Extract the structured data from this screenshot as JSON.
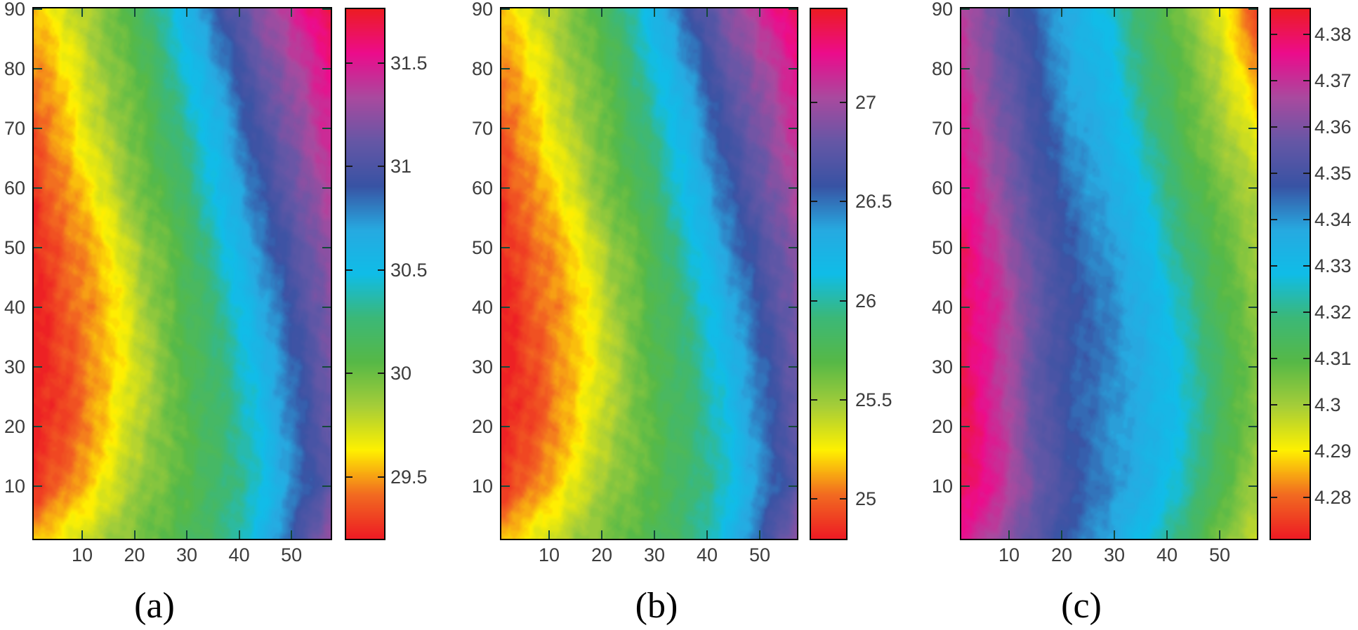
{
  "figure": {
    "background": "#ffffff",
    "axis_color": "#000000",
    "tick_label_color": "#3c3c3c",
    "caption_color": "#000000",
    "tick_mark_color": "#15483a",
    "colorbar_tick_color": "#1a1a1a",
    "colormap": "hsv-rainbow",
    "colormap_stops": [
      "#ed1c24",
      "#f26c21",
      "#fff101",
      "#a6ce39",
      "#57b947",
      "#3cb878",
      "#10bde8",
      "#27aae1",
      "#3953a4",
      "#6657a6",
      "#aa4a9f",
      "#ec0c8c",
      "#ed1c24"
    ]
  },
  "chart_data": [
    {
      "type": "heatmap",
      "caption": "(a)",
      "x": [
        1,
        8,
        15,
        22,
        29,
        36,
        43,
        50,
        57
      ],
      "y": [
        90,
        80,
        70,
        60,
        50,
        40,
        30,
        20,
        10,
        1
      ],
      "values": [
        [
          29.55,
          29.75,
          29.95,
          30.2,
          30.55,
          30.9,
          31.2,
          31.45,
          31.7
        ],
        [
          29.45,
          29.65,
          29.9,
          30.1,
          30.4,
          30.75,
          31.05,
          31.3,
          31.55
        ],
        [
          29.35,
          29.6,
          29.85,
          30.05,
          30.3,
          30.6,
          30.95,
          31.2,
          31.45
        ],
        [
          29.28,
          29.5,
          29.75,
          30.0,
          30.2,
          30.5,
          30.85,
          31.1,
          31.35
        ],
        [
          29.22,
          29.42,
          29.6,
          29.9,
          30.1,
          30.4,
          30.75,
          31.0,
          31.28
        ],
        [
          29.2,
          29.38,
          29.55,
          29.85,
          30.08,
          30.3,
          30.6,
          30.95,
          31.2
        ],
        [
          29.2,
          29.35,
          29.55,
          29.8,
          30.05,
          30.25,
          30.5,
          30.85,
          31.15
        ],
        [
          29.2,
          29.35,
          29.6,
          29.85,
          30.05,
          30.2,
          30.45,
          30.8,
          31.1
        ],
        [
          29.25,
          29.45,
          29.7,
          29.9,
          30.05,
          30.2,
          30.4,
          30.75,
          31.05
        ],
        [
          29.55,
          29.7,
          29.85,
          30.0,
          30.1,
          30.25,
          30.5,
          30.9,
          31.3
        ]
      ],
      "x_axis_range": [
        0.74,
        57.5
      ],
      "y_axis_range": [
        1.2,
        90.12
      ],
      "x_tick_values": [
        10,
        20,
        30,
        40,
        50
      ],
      "x_tick_labels": [
        "10",
        "20",
        "30",
        "40",
        "50"
      ],
      "y_tick_values": [
        90,
        80,
        70,
        60,
        50,
        40,
        30,
        20,
        10
      ],
      "y_tick_labels": [
        "90",
        "80",
        "70",
        "60",
        "50",
        "40",
        "30",
        "20",
        "10"
      ],
      "colorbar": {
        "min": 29.2,
        "max": 31.76,
        "tick_values": [
          31.5,
          31,
          30.5,
          30,
          29.5
        ],
        "tick_labels": [
          "31.5",
          "31",
          "30.5",
          "30",
          "29.5"
        ]
      }
    },
    {
      "type": "heatmap",
      "caption": "(b)",
      "x": [
        1,
        8,
        15,
        22,
        29,
        36,
        43,
        50,
        57
      ],
      "y": [
        90,
        80,
        70,
        60,
        50,
        40,
        30,
        20,
        10,
        1
      ],
      "values": [
        [
          25.16,
          25.37,
          25.58,
          25.84,
          26.2,
          26.56,
          26.87,
          27.13,
          27.39
        ],
        [
          25.06,
          25.27,
          25.52,
          25.73,
          26.04,
          26.4,
          26.72,
          26.97,
          27.23
        ],
        [
          24.96,
          25.21,
          25.47,
          25.68,
          25.94,
          26.25,
          26.61,
          26.87,
          27.13
        ],
        [
          24.88,
          25.11,
          25.37,
          25.63,
          25.84,
          26.15,
          26.51,
          26.77,
          27.03
        ],
        [
          24.82,
          25.03,
          25.21,
          25.52,
          25.73,
          26.04,
          26.4,
          26.66,
          26.95
        ],
        [
          24.8,
          24.99,
          25.16,
          25.47,
          25.71,
          25.94,
          26.25,
          26.61,
          26.87
        ],
        [
          24.8,
          24.96,
          25.16,
          25.42,
          25.68,
          25.89,
          26.15,
          26.51,
          26.82
        ],
        [
          24.8,
          24.96,
          25.21,
          25.47,
          25.68,
          25.84,
          26.09,
          26.46,
          26.77
        ],
        [
          24.85,
          25.06,
          25.32,
          25.52,
          25.68,
          25.84,
          26.04,
          26.4,
          26.72
        ],
        [
          25.16,
          25.32,
          25.47,
          25.63,
          25.73,
          25.89,
          26.15,
          26.56,
          26.97
        ]
      ],
      "x_axis_range": [
        0.93,
        57.07
      ],
      "y_axis_range": [
        1.2,
        90.12
      ],
      "x_tick_values": [
        10,
        20,
        30,
        40,
        50
      ],
      "x_tick_labels": [
        "10",
        "20",
        "30",
        "40",
        "50"
      ],
      "y_tick_values": [
        90,
        80,
        70,
        60,
        50,
        40,
        30,
        20,
        10
      ],
      "y_tick_labels": [
        "90",
        "80",
        "70",
        "60",
        "50",
        "40",
        "30",
        "20",
        "10"
      ],
      "colorbar": {
        "min": 24.8,
        "max": 27.47,
        "tick_values": [
          27,
          26.5,
          26,
          25.5,
          25
        ],
        "tick_labels": [
          "27",
          "26.5",
          "26",
          "25.5",
          "25"
        ]
      }
    },
    {
      "type": "heatmap",
      "caption": "(c)",
      "x": [
        1,
        8,
        15,
        22,
        29,
        36,
        43,
        50,
        57
      ],
      "y": [
        90,
        80,
        70,
        60,
        50,
        40,
        30,
        20,
        10,
        1
      ],
      "values": [
        [
          4.368,
          4.356,
          4.345,
          4.335,
          4.327,
          4.315,
          4.305,
          4.293,
          4.276
        ],
        [
          4.371,
          4.358,
          4.348,
          4.337,
          4.33,
          4.318,
          4.308,
          4.298,
          4.283
        ],
        [
          4.374,
          4.361,
          4.35,
          4.34,
          4.334,
          4.322,
          4.31,
          4.301,
          4.291
        ],
        [
          4.376,
          4.364,
          4.352,
          4.343,
          4.337,
          4.327,
          4.315,
          4.305,
          4.298
        ],
        [
          4.38,
          4.368,
          4.355,
          4.346,
          4.34,
          4.331,
          4.32,
          4.309,
          4.301
        ],
        [
          4.381,
          4.371,
          4.357,
          4.348,
          4.342,
          4.335,
          4.324,
          4.312,
          4.303
        ],
        [
          4.382,
          4.37,
          4.355,
          4.347,
          4.342,
          4.336,
          4.326,
          4.315,
          4.304
        ],
        [
          4.383,
          4.371,
          4.356,
          4.347,
          4.341,
          4.335,
          4.328,
          4.314,
          4.303
        ],
        [
          4.381,
          4.372,
          4.358,
          4.348,
          4.342,
          4.334,
          4.325,
          4.311,
          4.3
        ],
        [
          4.375,
          4.364,
          4.354,
          4.345,
          4.338,
          4.328,
          4.318,
          4.305,
          4.297
        ]
      ],
      "x_axis_range": [
        0.93,
        57.07
      ],
      "y_axis_range": [
        1.2,
        90.12
      ],
      "x_tick_values": [
        10,
        20,
        30,
        40,
        50
      ],
      "x_tick_labels": [
        "10",
        "20",
        "30",
        "40",
        "50"
      ],
      "y_tick_values": [
        90,
        80,
        70,
        60,
        50,
        40,
        30,
        20,
        10
      ],
      "y_tick_labels": [
        "90",
        "80",
        "70",
        "60",
        "50",
        "40",
        "30",
        "20",
        "10"
      ],
      "colorbar": {
        "min": 4.271,
        "max": 4.3855,
        "tick_values": [
          4.38,
          4.37,
          4.36,
          4.35,
          4.34,
          4.33,
          4.32,
          4.31,
          4.3,
          4.29,
          4.28
        ],
        "tick_labels": [
          "4.38",
          "4.37",
          "4.36",
          "4.35",
          "4.34",
          "4.33",
          "4.32",
          "4.31",
          "4.3",
          "4.29",
          "4.28"
        ]
      }
    }
  ]
}
